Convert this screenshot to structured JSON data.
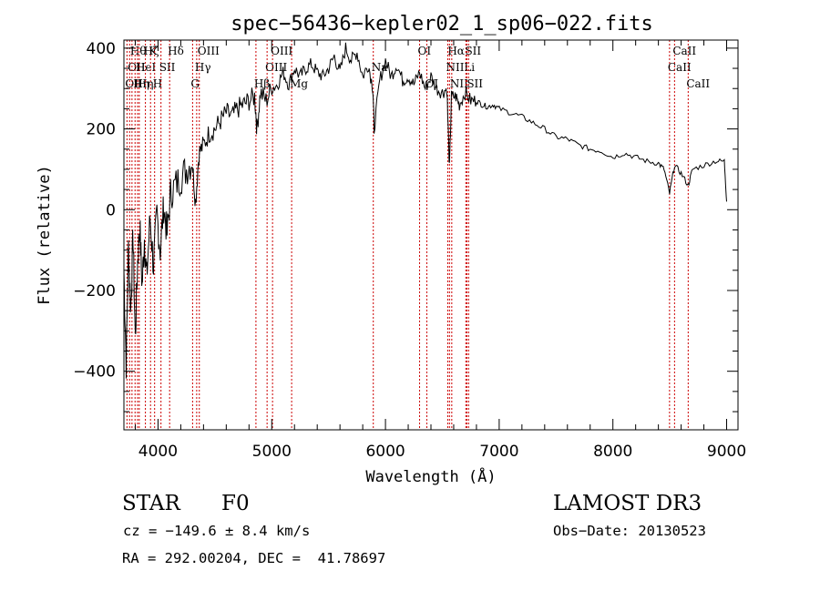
{
  "chart_data": {
    "type": "line",
    "title": "spec−56436−kepler02_1_sp06−022.fits",
    "xlabel": "Wavelength (Å)",
    "ylabel": "Flux (relative)",
    "xlim": [
      3700,
      9100
    ],
    "ylim": [
      -545,
      420
    ],
    "x_ticks": [
      4000,
      5000,
      6000,
      7000,
      8000,
      9000
    ],
    "y_ticks": [
      -400,
      -200,
      0,
      200,
      400
    ],
    "x_tick_labels": [
      "4000",
      "5000",
      "6000",
      "7000",
      "8000",
      "9000"
    ],
    "y_tick_labels": [
      "−400",
      "−200",
      "0",
      "200",
      "400"
    ],
    "grid": false,
    "line_color": "#000000",
    "marker_color": "#cc0000",
    "series": [
      {
        "name": "flux",
        "x": [
          3700,
          3720,
          3740,
          3760,
          3780,
          3800,
          3820,
          3840,
          3860,
          3880,
          3900,
          3930,
          3960,
          3990,
          4020,
          4050,
          4080,
          4110,
          4150,
          4200,
          4250,
          4300,
          4330,
          4360,
          4400,
          4450,
          4500,
          4550,
          4600,
          4650,
          4700,
          4750,
          4800,
          4850,
          4870,
          4900,
          4950,
          5000,
          5050,
          5100,
          5150,
          5200,
          5250,
          5300,
          5350,
          5400,
          5450,
          5500,
          5550,
          5600,
          5650,
          5700,
          5750,
          5800,
          5850,
          5890,
          5900,
          5950,
          6000,
          6050,
          6100,
          6150,
          6200,
          6250,
          6300,
          6350,
          6400,
          6450,
          6500,
          6540,
          6563,
          6580,
          6620,
          6650,
          6700,
          6750,
          6800,
          6850,
          6900,
          6950,
          7000,
          7100,
          7200,
          7300,
          7400,
          7500,
          7600,
          7700,
          7800,
          7900,
          8000,
          8100,
          8200,
          8300,
          8400,
          8450,
          8498,
          8542,
          8600,
          8662,
          8700,
          8800,
          8900,
          8980,
          9000
        ],
        "y": [
          -150,
          -380,
          -90,
          -250,
          -60,
          -320,
          -130,
          -40,
          -190,
          -70,
          -170,
          -20,
          -140,
          -10,
          -100,
          10,
          -60,
          40,
          60,
          80,
          100,
          120,
          20,
          140,
          160,
          190,
          200,
          220,
          240,
          230,
          250,
          260,
          270,
          280,
          200,
          290,
          270,
          300,
          310,
          340,
          310,
          350,
          330,
          350,
          360,
          340,
          330,
          350,
          380,
          340,
          400,
          370,
          390,
          330,
          360,
          300,
          200,
          320,
          370,
          330,
          360,
          320,
          330,
          310,
          340,
          300,
          330,
          300,
          290,
          300,
          100,
          280,
          280,
          260,
          290,
          270,
          270,
          260,
          255,
          260,
          250,
          240,
          230,
          215,
          200,
          180,
          175,
          160,
          150,
          145,
          130,
          140,
          130,
          120,
          115,
          100,
          40,
          110,
          90,
          60,
          100,
          110,
          120,
          120,
          20
        ]
      }
    ],
    "line_markers": [
      {
        "x": 3727,
        "label": "OII",
        "row": 2
      },
      {
        "x": 3750,
        "label": "OII",
        "row": 1
      },
      {
        "x": 3771,
        "label": "Hθ",
        "row": 0
      },
      {
        "x": 3798,
        "label": "Hη",
        "row": 2
      },
      {
        "x": 3820,
        "label": "HeI",
        "row": 1
      },
      {
        "x": 3835,
        "label": "Hη",
        "row": 2
      },
      {
        "x": 3889,
        "label": "Hζ",
        "row": 0
      },
      {
        "x": 3934,
        "label": "K",
        "row": 0
      },
      {
        "x": 3970,
        "label": "H",
        "row": 2
      },
      {
        "x": 4026,
        "label": "SII",
        "row": 1
      },
      {
        "x": 4102,
        "label": "Hδ",
        "row": 0
      },
      {
        "x": 4304,
        "label": "G",
        "row": 2
      },
      {
        "x": 4340,
        "label": "Hγ",
        "row": 1
      },
      {
        "x": 4363,
        "label": "OIII",
        "row": 0
      },
      {
        "x": 4861,
        "label": "Hβ",
        "row": 2
      },
      {
        "x": 4959,
        "label": "OIII",
        "row": 1
      },
      {
        "x": 5007,
        "label": "OIII",
        "row": 0
      },
      {
        "x": 5175,
        "label": "Mg",
        "row": 2
      },
      {
        "x": 5893,
        "label": "Na",
        "row": 1
      },
      {
        "x": 6300,
        "label": "OI",
        "row": 0
      },
      {
        "x": 6364,
        "label": "OI",
        "row": 2
      },
      {
        "x": 6548,
        "label": "NII",
        "row": 1
      },
      {
        "x": 6563,
        "label": "Hα",
        "row": 0
      },
      {
        "x": 6583,
        "label": "NII",
        "row": 2
      },
      {
        "x": 6707,
        "label": "Li",
        "row": 1
      },
      {
        "x": 6716,
        "label": "SII",
        "row": 0
      },
      {
        "x": 6731,
        "label": "SII",
        "row": 2
      },
      {
        "x": 8498,
        "label": "CaII",
        "row": 1
      },
      {
        "x": 8542,
        "label": "CaII",
        "row": 0
      },
      {
        "x": 8662,
        "label": "CaII",
        "row": 2
      }
    ]
  },
  "info": {
    "class": "STAR",
    "subclass": "F0",
    "survey": "LAMOST DR3",
    "redshift": "cz = −149.6 ± 8.4 km/s",
    "obs_date": "Obs−Date: 20130523",
    "coords": "RA = 292.00204, DEC =  41.78697"
  }
}
